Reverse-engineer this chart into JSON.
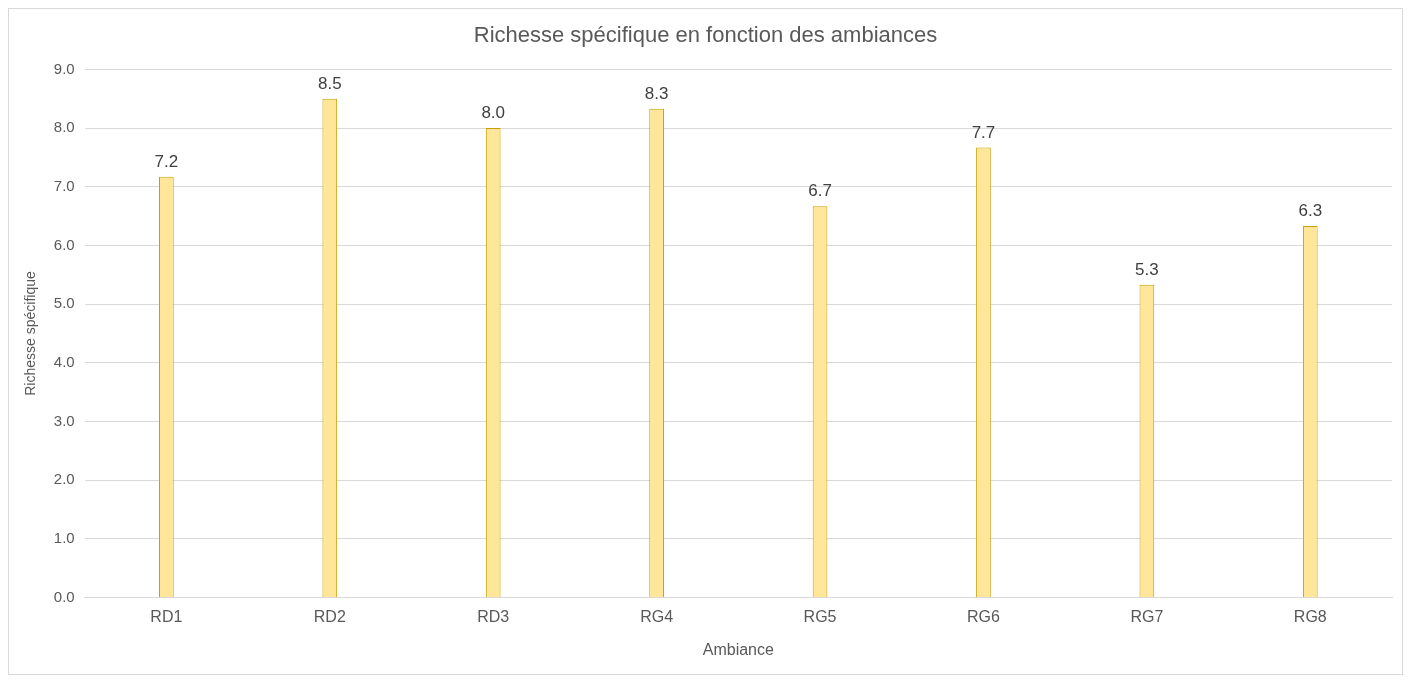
{
  "chart_data": {
    "type": "bar",
    "title": "Richesse spécifique en fonction des ambiances",
    "xlabel": "Ambiance",
    "ylabel": "Richesse spécifique",
    "categories": [
      "RD1",
      "RD2",
      "RD3",
      "RG4",
      "RG5",
      "RG6",
      "RG7",
      "RG8"
    ],
    "values": [
      7.17,
      8.5,
      8.0,
      8.33,
      6.67,
      7.67,
      5.33,
      6.33
    ],
    "value_labels": [
      "7.2",
      "8.5",
      "8.0",
      "8.3",
      "6.7",
      "7.7",
      "5.3",
      "6.3"
    ],
    "color": "#ffe699",
    "ylim": [
      0,
      9
    ],
    "yticks": [
      {
        "value": 0,
        "label": "0.0"
      },
      {
        "value": 1,
        "label": "1.0"
      },
      {
        "value": 2,
        "label": "2.0"
      },
      {
        "value": 3,
        "label": "3.0"
      },
      {
        "value": 4,
        "label": "4.0"
      },
      {
        "value": 5,
        "label": "5.0"
      },
      {
        "value": 6,
        "label": "6.0"
      },
      {
        "value": 7,
        "label": "7.0"
      },
      {
        "value": 8,
        "label": "8.0"
      },
      {
        "value": 9,
        "label": "9.0"
      }
    ],
    "grid": "y",
    "legend": false
  }
}
